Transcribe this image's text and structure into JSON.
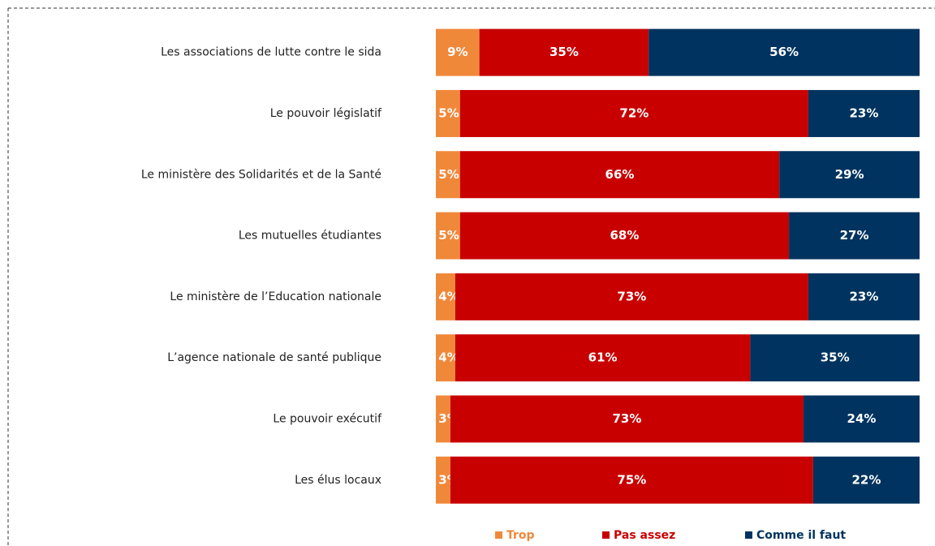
{
  "chart_data": {
    "type": "stacked-bar-horizontal",
    "categories": [
      "Les associations de lutte contre le sida",
      "Le pouvoir législatif",
      "Le ministère des Solidarités et de la Santé",
      "Les mutuelles étudiantes",
      "Le ministère de l’Education nationale",
      "L’agence nationale de santé publique",
      "Le pouvoir exécutif",
      "Les élus locaux"
    ],
    "series": [
      {
        "name": "Trop",
        "color": "#f0883a",
        "values": [
          9,
          5,
          5,
          5,
          4,
          4,
          3,
          3
        ],
        "value_labels": [
          "9%",
          "5%",
          "5%",
          "5%",
          "4%",
          "4%",
          "3%",
          "3%"
        ]
      },
      {
        "name": "Pas assez",
        "color": "#c80000",
        "values": [
          35,
          72,
          66,
          68,
          73,
          61,
          73,
          75
        ],
        "value_labels": [
          "35%",
          "72%",
          "66%",
          "68%",
          "73%",
          "61%",
          "73%",
          "75%"
        ]
      },
      {
        "name": "Comme il faut",
        "color": "#00335f",
        "values": [
          56,
          23,
          29,
          27,
          23,
          35,
          24,
          22
        ],
        "value_labels": [
          "56%",
          "23%",
          "29%",
          "27%",
          "23%",
          "35%",
          "24%",
          "22%"
        ]
      }
    ],
    "xlim": [
      0,
      100
    ],
    "legend": "bottom"
  }
}
